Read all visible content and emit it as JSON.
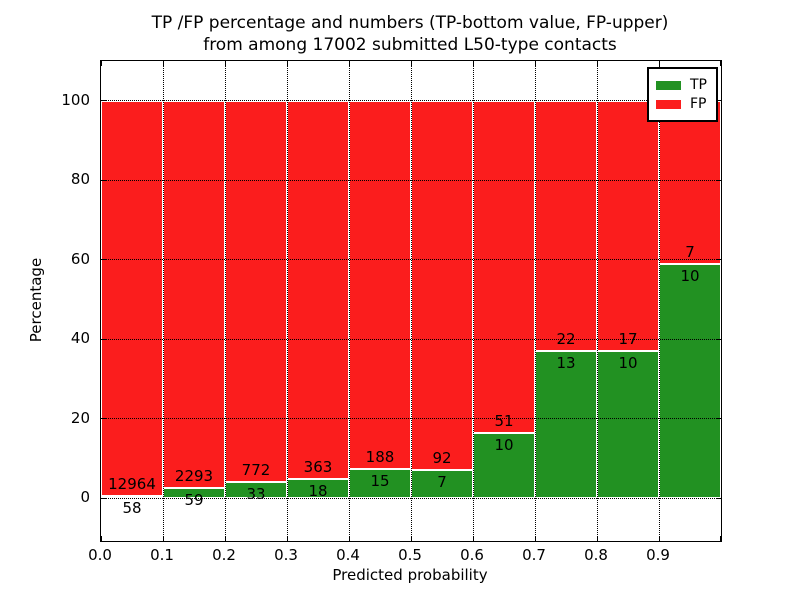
{
  "figure": {
    "title_line1": "TP /FP percentage and numbers (TP-bottom value, FP-upper)",
    "title_line2": "from among 17002 submitted L50-type contacts"
  },
  "chart_data": {
    "type": "bar",
    "stacked": true,
    "title": "TP /FP percentage and numbers (TP-bottom value, FP-upper)\nfrom among 17002 submitted L50-type contacts",
    "xlabel": "Predicted probability",
    "ylabel": "Percentage",
    "total_contacts": 17002,
    "x_tick_labels": [
      "0.0",
      "0.1",
      "0.2",
      "0.3",
      "0.4",
      "0.5",
      "0.6",
      "0.7",
      "0.8",
      "0.9"
    ],
    "y_tick_values": [
      0,
      20,
      40,
      60,
      80,
      100
    ],
    "xlim": [
      0.0,
      1.0
    ],
    "ylim": [
      -10.8,
      110
    ],
    "grid": true,
    "bar_width": 0.1,
    "colors": {
      "tp": "#229122",
      "fp": "#fb1d1d"
    },
    "legend": {
      "position": "upper right",
      "entries": [
        {
          "label": "TP",
          "color": "#229122"
        },
        {
          "label": "FP",
          "color": "#fb1d1d"
        }
      ]
    },
    "bins": [
      {
        "range": [
          0.0,
          0.1
        ],
        "tp": 58,
        "fp": 12964,
        "tp_percent": 0.45
      },
      {
        "range": [
          0.1,
          0.2
        ],
        "tp": 59,
        "fp": 2293,
        "tp_percent": 2.51
      },
      {
        "range": [
          0.2,
          0.3
        ],
        "tp": 33,
        "fp": 772,
        "tp_percent": 4.1
      },
      {
        "range": [
          0.3,
          0.4
        ],
        "tp": 18,
        "fp": 363,
        "tp_percent": 4.72
      },
      {
        "range": [
          0.4,
          0.5
        ],
        "tp": 15,
        "fp": 188,
        "tp_percent": 7.39
      },
      {
        "range": [
          0.5,
          0.6
        ],
        "tp": 7,
        "fp": 92,
        "tp_percent": 7.07
      },
      {
        "range": [
          0.6,
          0.7
        ],
        "tp": 10,
        "fp": 51,
        "tp_percent": 16.39
      },
      {
        "range": [
          0.7,
          0.8
        ],
        "tp": 13,
        "fp": 22,
        "tp_percent": 37.14
      },
      {
        "range": [
          0.8,
          0.9
        ],
        "tp": 10,
        "fp": 17,
        "tp_percent": 37.04
      },
      {
        "range": [
          0.9,
          1.0
        ],
        "tp": 10,
        "fp": 7,
        "tp_percent": 58.82
      }
    ]
  }
}
